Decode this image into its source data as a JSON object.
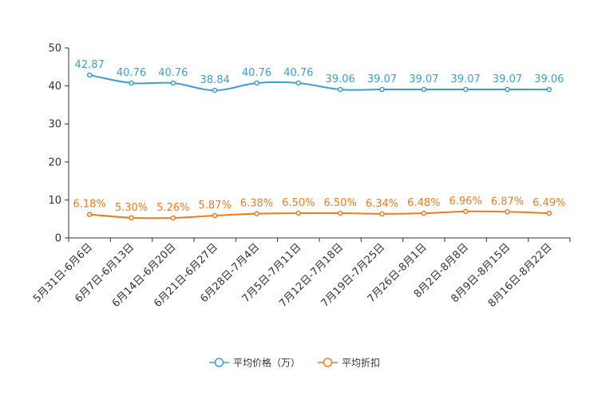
{
  "chart_data": {
    "type": "line",
    "title": "",
    "xlabel": "",
    "ylabel": "",
    "ylim": [
      0,
      50
    ],
    "yticks": [
      0,
      10,
      20,
      30,
      40,
      50
    ],
    "grid": false,
    "legend_position": "bottom",
    "categories": [
      "5月31日-6月6日",
      "6月7日-6月13日",
      "6月14日-6月20日",
      "6月21日-6月27日",
      "6月28日-7月4日",
      "7月5日-7月11日",
      "7月12日-7月18日",
      "7月19日-7月25日",
      "7月26日-8月1日",
      "8月2日-8月8日",
      "8月9日-8月15日",
      "8月16日-8月22日"
    ],
    "series": [
      {
        "name": "平均价格（万）",
        "color": "#3a9fd5",
        "values": [
          42.87,
          40.76,
          40.76,
          38.84,
          40.76,
          40.76,
          39.06,
          39.07,
          39.07,
          39.07,
          39.07,
          39.06
        ],
        "labels": [
          "42.87",
          "40.76",
          "40.76",
          "38.84",
          "40.76",
          "40.76",
          "39.06",
          "39.07",
          "39.07",
          "39.07",
          "39.07",
          "39.06"
        ]
      },
      {
        "name": "平均折扣",
        "color": "#f07a1c",
        "values": [
          6.18,
          5.3,
          5.26,
          5.87,
          6.38,
          6.5,
          6.5,
          6.34,
          6.48,
          6.96,
          6.87,
          6.49
        ],
        "labels": [
          "6.18%",
          "5.30%",
          "5.26%",
          "5.87%",
          "6.38%",
          "6.50%",
          "6.50%",
          "6.34%",
          "6.48%",
          "6.96%",
          "6.87%",
          "6.49%"
        ]
      }
    ]
  }
}
